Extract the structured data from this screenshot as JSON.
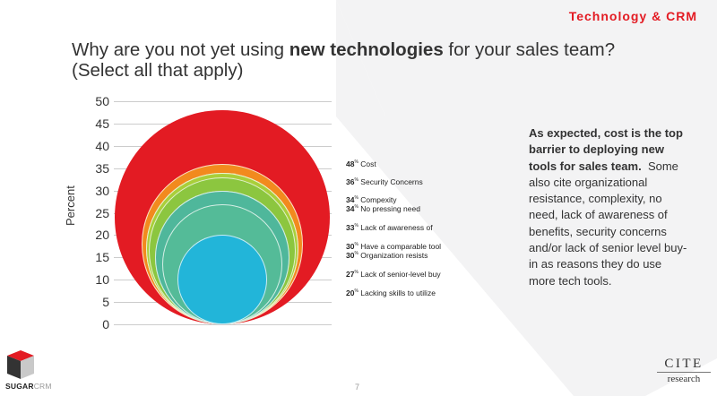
{
  "header": {
    "section_tag": "Technology & CRM",
    "title_part1": "Why are you not yet using ",
    "title_bold": "new technologies",
    "title_part2": " for your sales team?",
    "title_line2": "(Select all that apply)"
  },
  "colors": {
    "accent_red": "#e31b23",
    "text": "#333333",
    "gridline": "#cccccc",
    "background_shape": "#f2f2f3"
  },
  "chart_data": {
    "type": "bubble",
    "title": "Why are you not yet using new technologies for your sales team? (Select all that apply)",
    "xlabel": "",
    "ylabel": "Percent",
    "ylim": [
      0,
      50
    ],
    "yticks": [
      0,
      5,
      10,
      15,
      20,
      25,
      30,
      35,
      40,
      45,
      50
    ],
    "grid": true,
    "legend_position": "right",
    "categories": [
      "Cost",
      "Security Concerns",
      "Compexity",
      "No pressing need",
      "Lack of awareness of",
      "Have a comparable tool",
      "Organization resists",
      "Lack of senior-level buy",
      "Lacking skills to utilize"
    ],
    "values": [
      48,
      36,
      34,
      34,
      33,
      30,
      30,
      27,
      20
    ],
    "series_colors": [
      "#e31b23",
      "#f28a1e",
      "#f7b125",
      "#a9cf3a",
      "#8cc63f",
      "#5bb846",
      "#4fb79b",
      "#54bb98",
      "#22b5d9"
    ]
  },
  "y_axis": {
    "label": "Percent",
    "ticks": [
      "50",
      "45",
      "40",
      "35",
      "30",
      "25",
      "20",
      "15",
      "10",
      "5",
      "0"
    ]
  },
  "legend": [
    {
      "pct": "48",
      "sym": "%",
      "label": "Cost"
    },
    {
      "pct": "36",
      "sym": "%",
      "label": "Security Concerns"
    },
    {
      "pct": "34",
      "sym": "%",
      "label": "Compexity"
    },
    {
      "pct": "34",
      "sym": "%",
      "label": "No pressing need"
    },
    {
      "pct": "33",
      "sym": "%",
      "label": "Lack of awareness of"
    },
    {
      "pct": "30",
      "sym": "%",
      "label": "Have a comparable tool"
    },
    {
      "pct": "30",
      "sym": "%",
      "label": "Organization resists"
    },
    {
      "pct": "27",
      "sym": "%",
      "label": "Lack of senior-level buy"
    },
    {
      "pct": "20",
      "sym": "%",
      "label": "Lacking skills to utilize"
    }
  ],
  "commentary": {
    "bold": "As expected, cost is the top barrier to deploying new tools for sales team.",
    "normal": "  Some also cite organizational resistance, complexity, no need, lack of awareness of benefits, security concerns and/or lack of senior level buy-in as reasons they do use more tech tools."
  },
  "footer": {
    "page_number": "7",
    "logo_left_part1": "SUGAR",
    "logo_left_part2": "CRM",
    "logo_right_line1": "CITE",
    "logo_right_line2": "research"
  }
}
